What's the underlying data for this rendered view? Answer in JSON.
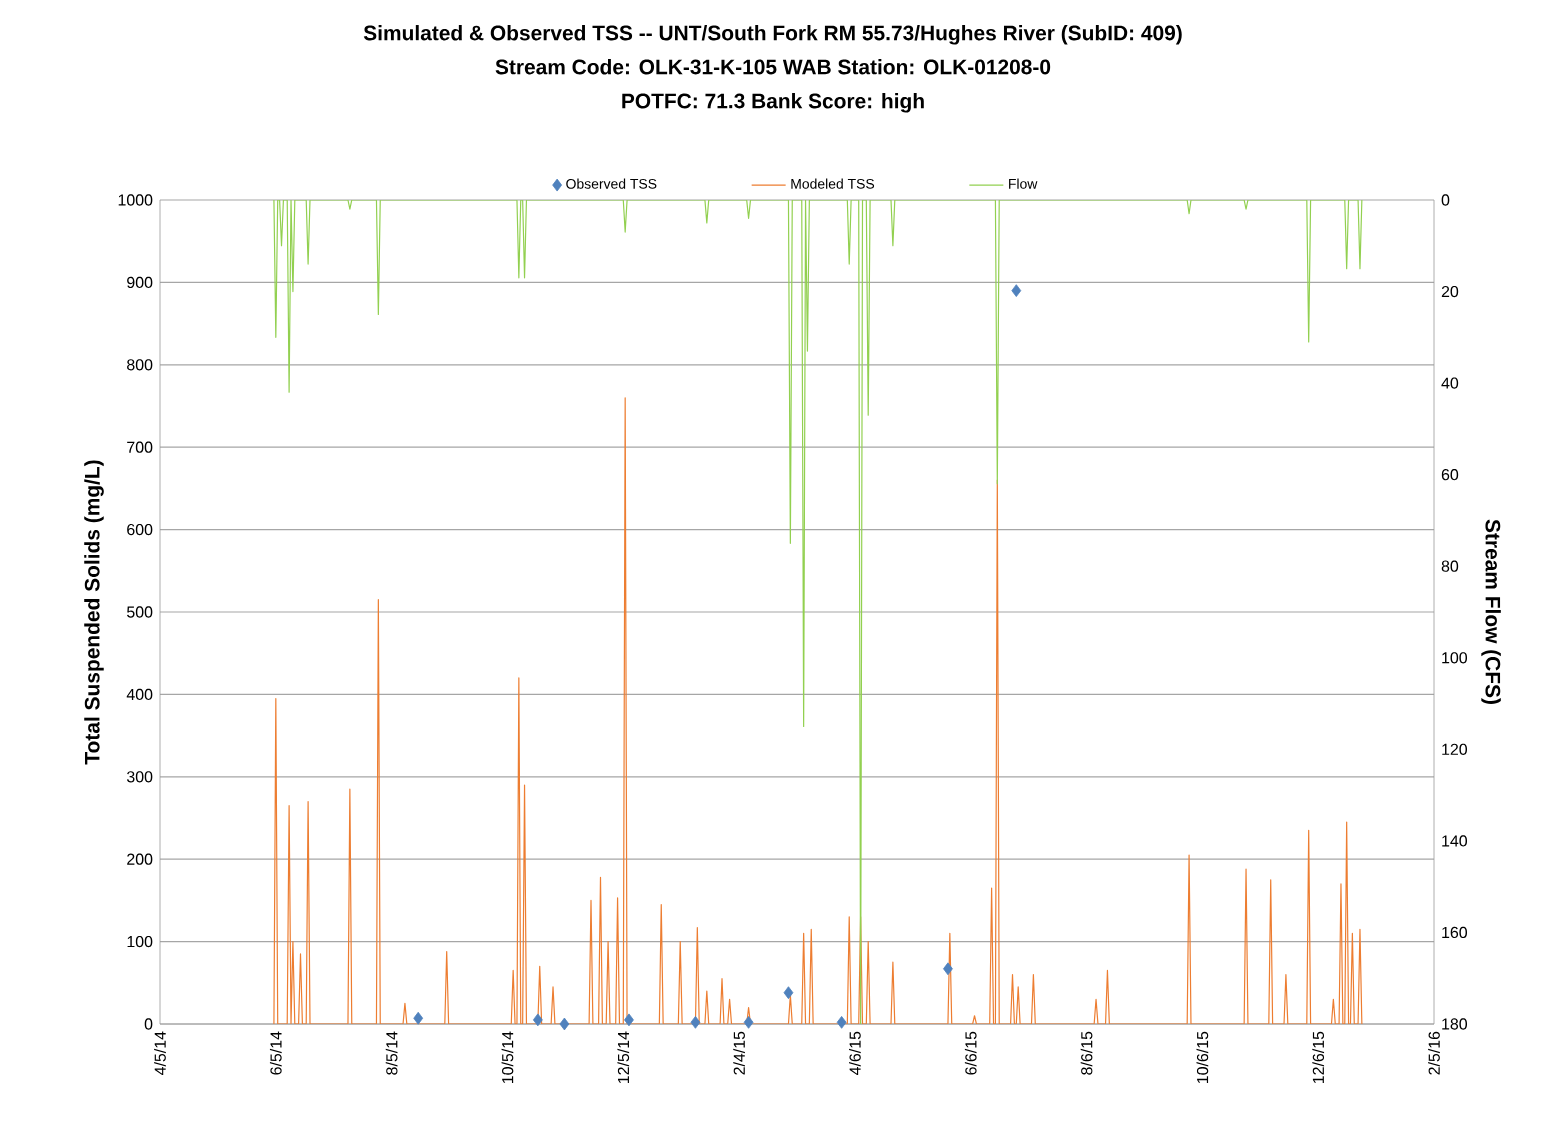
{
  "chart_data": {
    "type": "line",
    "title": "Simulated & Observed TSS -- UNT/South Fork RM 55.73/Hughes River  (SubID: 409)",
    "subtitle": "Stream Code: OLK-31-K-105     WAB Station: OLK-01208-0",
    "annotations": [
      "POTFC: 71.3  Bank Score: high"
    ],
    "ylabel": "Total Suspended Solids (mg/L)",
    "y2label": "Stream Flow (CFS)",
    "xlim": [
      "2014-04-05",
      "2016-02-05"
    ],
    "xticks": [
      {
        "value": "2014-04-05",
        "label": "4/5/14"
      },
      {
        "value": "2014-06-05",
        "label": "6/5/14"
      },
      {
        "value": "2014-08-05",
        "label": "8/5/14"
      },
      {
        "value": "2014-10-05",
        "label": "10/5/14"
      },
      {
        "value": "2014-12-05",
        "label": "12/5/14"
      },
      {
        "value": "2015-02-04",
        "label": "2/4/15"
      },
      {
        "value": "2015-04-06",
        "label": "4/6/15"
      },
      {
        "value": "2015-06-06",
        "label": "6/6/15"
      },
      {
        "value": "2015-08-06",
        "label": "8/6/15"
      },
      {
        "value": "2015-10-06",
        "label": "10/6/15"
      },
      {
        "value": "2015-12-06",
        "label": "12/6/15"
      },
      {
        "value": "2016-02-05",
        "label": "2/5/16"
      }
    ],
    "ylim": [
      0,
      1000
    ],
    "yticks": [
      0,
      100,
      200,
      300,
      400,
      500,
      600,
      700,
      800,
      900,
      1000
    ],
    "y2lim": [
      180,
      0
    ],
    "y2ticks": [
      0,
      20,
      40,
      60,
      80,
      100,
      120,
      140,
      160,
      180
    ],
    "grid": "y",
    "legend": "top",
    "series": [
      {
        "name": "Observed TSS",
        "type": "scatter",
        "marker": "diamond",
        "color": "#4f81bd",
        "x": [
          "2014-08-19",
          "2014-10-21",
          "2014-11-04",
          "2014-12-08",
          "2015-01-12",
          "2015-02-09",
          "2015-03-02",
          "2015-03-30",
          "2015-05-25",
          "2015-06-30"
        ],
        "values": [
          7,
          5,
          0,
          5,
          2,
          2,
          38,
          2,
          67,
          890
        ]
      },
      {
        "name": "Modeled TSS",
        "color": "#ed7d31",
        "x": [
          "2014-06-04",
          "2014-06-05",
          "2014-06-06",
          "2014-06-11",
          "2014-06-12",
          "2014-06-13",
          "2014-06-14",
          "2014-06-15",
          "2014-06-17",
          "2014-06-18",
          "2014-06-19",
          "2014-06-21",
          "2014-06-22",
          "2014-06-23",
          "2014-07-13",
          "2014-07-14",
          "2014-07-15",
          "2014-07-28",
          "2014-07-29",
          "2014-07-30",
          "2014-08-11",
          "2014-08-12",
          "2014-08-13",
          "2014-09-02",
          "2014-09-03",
          "2014-09-04",
          "2014-10-07",
          "2014-10-08",
          "2014-10-09",
          "2014-10-10",
          "2014-10-11",
          "2014-10-12",
          "2014-10-13",
          "2014-10-14",
          "2014-10-15",
          "2014-10-21",
          "2014-10-22",
          "2014-10-23",
          "2014-10-28",
          "2014-10-29",
          "2014-10-30",
          "2014-11-17",
          "2014-11-18",
          "2014-11-19",
          "2014-11-22",
          "2014-11-23",
          "2014-11-24",
          "2014-11-26",
          "2014-11-27",
          "2014-11-28",
          "2014-12-01",
          "2014-12-02",
          "2014-12-03",
          "2014-12-05",
          "2014-12-06",
          "2014-12-07",
          "2014-12-24",
          "2014-12-25",
          "2014-12-26",
          "2015-01-03",
          "2015-01-04",
          "2015-01-05",
          "2015-01-12",
          "2015-01-13",
          "2015-01-14",
          "2015-01-17",
          "2015-01-18",
          "2015-01-19",
          "2015-01-25",
          "2015-01-26",
          "2015-01-27",
          "2015-01-29",
          "2015-01-30",
          "2015-01-31",
          "2015-02-08",
          "2015-02-09",
          "2015-02-10",
          "2015-03-02",
          "2015-03-03",
          "2015-03-04",
          "2015-03-09",
          "2015-03-10",
          "2015-03-11",
          "2015-03-13",
          "2015-03-14",
          "2015-03-15",
          "2015-04-02",
          "2015-04-03",
          "2015-04-04",
          "2015-04-08",
          "2015-04-09",
          "2015-04-10",
          "2015-04-12",
          "2015-04-13",
          "2015-04-14",
          "2015-04-25",
          "2015-04-26",
          "2015-04-27",
          "2015-05-25",
          "2015-05-26",
          "2015-05-27",
          "2015-06-07",
          "2015-06-08",
          "2015-06-09",
          "2015-06-16",
          "2015-06-17",
          "2015-06-18",
          "2015-06-19",
          "2015-06-20",
          "2015-06-21",
          "2015-06-27",
          "2015-06-28",
          "2015-06-29",
          "2015-06-30",
          "2015-07-01",
          "2015-07-02",
          "2015-07-08",
          "2015-07-09",
          "2015-07-10",
          "2015-08-10",
          "2015-08-11",
          "2015-08-12",
          "2015-08-16",
          "2015-08-17",
          "2015-08-18",
          "2015-09-28",
          "2015-09-29",
          "2015-09-30",
          "2015-10-28",
          "2015-10-29",
          "2015-10-30",
          "2015-11-10",
          "2015-11-11",
          "2015-11-12",
          "2015-11-18",
          "2015-11-19",
          "2015-11-20",
          "2015-11-30",
          "2015-12-01",
          "2015-12-02",
          "2015-12-13",
          "2015-12-14",
          "2015-12-15",
          "2015-12-17",
          "2015-12-18",
          "2015-12-19",
          "2015-12-20",
          "2015-12-21",
          "2015-12-22",
          "2015-12-23",
          "2015-12-24",
          "2015-12-25",
          "2015-12-27",
          "2015-12-28",
          "2015-12-29"
        ],
        "values": [
          0,
          395,
          0,
          0,
          265,
          0,
          100,
          0,
          0,
          85,
          0,
          0,
          270,
          0,
          0,
          285,
          0,
          0,
          515,
          0,
          0,
          25,
          0,
          0,
          88,
          0,
          0,
          65,
          0,
          0,
          420,
          0,
          0,
          290,
          0,
          0,
          70,
          0,
          0,
          45,
          0,
          0,
          150,
          0,
          0,
          178,
          0,
          0,
          100,
          0,
          0,
          153,
          0,
          0,
          760,
          0,
          0,
          145,
          0,
          0,
          100,
          0,
          0,
          117,
          0,
          0,
          40,
          0,
          0,
          55,
          0,
          0,
          30,
          0,
          0,
          20,
          0,
          0,
          35,
          0,
          0,
          110,
          0,
          0,
          115,
          0,
          0,
          130,
          0,
          0,
          130,
          0,
          0,
          100,
          0,
          0,
          75,
          0,
          0,
          110,
          0,
          0,
          10,
          0,
          0,
          165,
          0,
          0,
          660,
          0,
          0,
          60,
          0,
          0,
          45,
          0,
          0,
          60,
          0,
          0,
          30,
          0,
          0,
          65,
          0,
          0,
          205,
          0,
          0,
          188,
          0,
          0,
          175,
          0,
          0,
          60,
          0,
          0,
          235,
          0,
          0,
          30,
          0,
          0,
          170,
          0,
          0,
          245,
          0,
          0,
          110,
          0,
          0,
          115,
          0
        ]
      },
      {
        "name": "Flow",
        "axis": "y2",
        "color": "#92d050",
        "x": [
          "2014-06-04",
          "2014-06-05",
          "2014-06-06",
          "2014-06-07",
          "2014-06-08",
          "2014-06-09",
          "2014-06-11",
          "2014-06-12",
          "2014-06-13",
          "2014-06-14",
          "2014-06-15",
          "2014-06-21",
          "2014-06-22",
          "2014-06-23",
          "2014-07-13",
          "2014-07-14",
          "2014-07-15",
          "2014-07-28",
          "2014-07-29",
          "2014-07-30",
          "2014-10-10",
          "2014-10-11",
          "2014-10-12",
          "2014-10-13",
          "2014-10-14",
          "2014-10-15",
          "2014-12-05",
          "2014-12-06",
          "2014-12-07",
          "2015-01-17",
          "2015-01-18",
          "2015-01-19",
          "2015-02-08",
          "2015-02-09",
          "2015-02-10",
          "2015-03-02",
          "2015-03-03",
          "2015-03-04",
          "2015-03-09",
          "2015-03-10",
          "2015-03-11",
          "2015-03-12",
          "2015-03-13",
          "2015-04-02",
          "2015-04-03",
          "2015-04-04",
          "2015-04-08",
          "2015-04-09",
          "2015-04-10",
          "2015-04-12",
          "2015-04-13",
          "2015-04-14",
          "2015-04-25",
          "2015-04-26",
          "2015-04-27",
          "2015-06-19",
          "2015-06-20",
          "2015-06-21",
          "2015-09-28",
          "2015-09-29",
          "2015-09-30",
          "2015-10-28",
          "2015-10-29",
          "2015-10-30",
          "2015-11-30",
          "2015-12-01",
          "2015-12-02",
          "2015-12-20",
          "2015-12-21",
          "2015-12-22",
          "2015-12-27",
          "2015-12-28",
          "2015-12-29"
        ],
        "values": [
          0,
          30,
          0,
          0,
          10,
          0,
          0,
          42,
          0,
          20,
          0,
          0,
          14,
          0,
          0,
          2,
          0,
          0,
          25,
          0,
          0,
          17,
          0,
          0,
          17,
          0,
          0,
          7,
          0,
          0,
          5,
          0,
          0,
          4,
          0,
          0,
          75,
          0,
          0,
          115,
          0,
          33,
          0,
          0,
          14,
          0,
          0,
          180,
          0,
          0,
          47,
          0,
          0,
          10,
          0,
          0,
          62,
          0,
          0,
          3,
          0,
          0,
          2,
          0,
          0,
          31,
          0,
          0,
          15,
          0,
          0,
          15,
          0
        ]
      }
    ]
  }
}
